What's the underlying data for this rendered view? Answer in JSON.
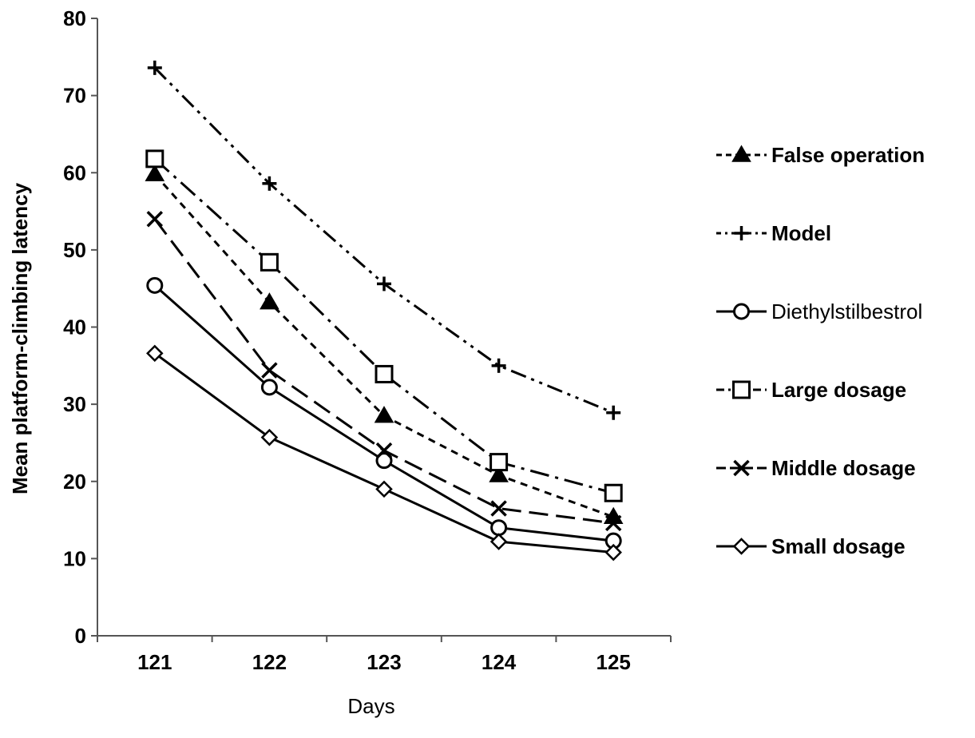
{
  "chart_data": {
    "type": "line",
    "title": "",
    "xlabel": "Days",
    "ylabel": "Mean platform-climbing latency",
    "categories": [
      "121",
      "122",
      "123",
      "124",
      "125"
    ],
    "ylim": [
      0,
      80
    ],
    "yticks": [
      0,
      10,
      20,
      30,
      40,
      50,
      60,
      70,
      80
    ],
    "grid": false,
    "legend_position": "right",
    "series": [
      {
        "name": "False operation",
        "values": [
          59.8,
          43.2,
          28.5,
          20.8,
          15.4
        ],
        "marker": "triangle",
        "dash": "short-dash",
        "color": "#000000"
      },
      {
        "name": "Model",
        "values": [
          73.6,
          58.6,
          45.6,
          35.0,
          28.9
        ],
        "marker": "plus",
        "dash": "dash-dot-dot",
        "color": "#000000"
      },
      {
        "name": "Diethylstilbestrol",
        "values": [
          45.4,
          32.2,
          22.7,
          14.0,
          12.3
        ],
        "marker": "circle",
        "dash": "solid",
        "color": "#000000"
      },
      {
        "name": "Large dosage",
        "values": [
          61.8,
          48.4,
          33.9,
          22.5,
          18.5
        ],
        "marker": "square",
        "dash": "long-dash-dot",
        "color": "#000000"
      },
      {
        "name": "Middle dosage",
        "values": [
          54.0,
          34.4,
          24.0,
          16.5,
          14.6
        ],
        "marker": "x",
        "dash": "long-dash",
        "color": "#000000"
      },
      {
        "name": "Small dosage",
        "values": [
          36.6,
          25.7,
          19.0,
          12.2,
          10.8
        ],
        "marker": "diamond",
        "dash": "solid",
        "color": "#000000"
      }
    ]
  }
}
